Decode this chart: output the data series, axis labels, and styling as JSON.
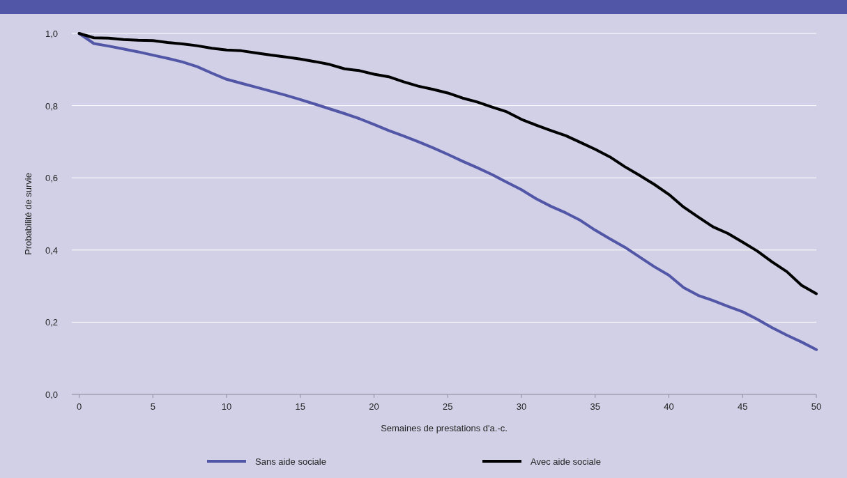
{
  "chart_data": {
    "type": "line",
    "xlabel": "Semaines de prestations d'a.-c.",
    "ylabel": "Probabilité de survie",
    "x": [
      0,
      1,
      2,
      3,
      4,
      5,
      6,
      7,
      8,
      9,
      10,
      11,
      12,
      13,
      14,
      15,
      16,
      17,
      18,
      19,
      20,
      21,
      22,
      23,
      24,
      25,
      26,
      27,
      28,
      29,
      30,
      31,
      32,
      33,
      34,
      35,
      36,
      37,
      38,
      39,
      40,
      41,
      42,
      43,
      44,
      45,
      46,
      47,
      48,
      49,
      50
    ],
    "series": [
      {
        "name": "Sans aide sociale",
        "color": "#5256a6",
        "values": [
          1.0,
          0.972,
          0.965,
          0.957,
          0.949,
          0.94,
          0.931,
          0.921,
          0.908,
          0.89,
          0.873,
          0.862,
          0.851,
          0.84,
          0.829,
          0.817,
          0.804,
          0.791,
          0.778,
          0.764,
          0.748,
          0.731,
          0.716,
          0.7,
          0.683,
          0.665,
          0.646,
          0.628,
          0.609,
          0.588,
          0.567,
          0.542,
          0.521,
          0.503,
          0.482,
          0.455,
          0.431,
          0.408,
          0.381,
          0.354,
          0.33,
          0.296,
          0.274,
          0.26,
          0.244,
          0.229,
          0.208,
          0.185,
          0.164,
          0.145,
          0.124
        ]
      },
      {
        "name": "Avec aide sociale",
        "color": "#000000",
        "values": [
          1.0,
          0.988,
          0.987,
          0.983,
          0.981,
          0.98,
          0.975,
          0.971,
          0.966,
          0.959,
          0.954,
          0.952,
          0.946,
          0.94,
          0.935,
          0.929,
          0.922,
          0.914,
          0.902,
          0.897,
          0.887,
          0.88,
          0.866,
          0.854,
          0.845,
          0.835,
          0.821,
          0.81,
          0.796,
          0.783,
          0.762,
          0.746,
          0.731,
          0.717,
          0.698,
          0.679,
          0.658,
          0.631,
          0.607,
          0.582,
          0.554,
          0.519,
          0.491,
          0.464,
          0.446,
          0.422,
          0.397,
          0.367,
          0.34,
          0.302,
          0.279
        ]
      }
    ],
    "xlim": [
      -0.5,
      50
    ],
    "xticks": [
      0,
      5,
      10,
      15,
      20,
      25,
      30,
      35,
      40,
      45,
      50
    ],
    "ylim": [
      0,
      1
    ],
    "yticks": [
      {
        "value": 0,
        "label": "0,0"
      },
      {
        "value": 0.2,
        "label": "0,2"
      },
      {
        "value": 0.4,
        "label": "0,4"
      },
      {
        "value": 0.6,
        "label": "0,6"
      },
      {
        "value": 0.8,
        "label": "0,8"
      },
      {
        "value": 1.0,
        "label": "1,0"
      }
    ],
    "grid": "y",
    "legend": "bottom",
    "marker": "none",
    "line_style": "solid"
  }
}
